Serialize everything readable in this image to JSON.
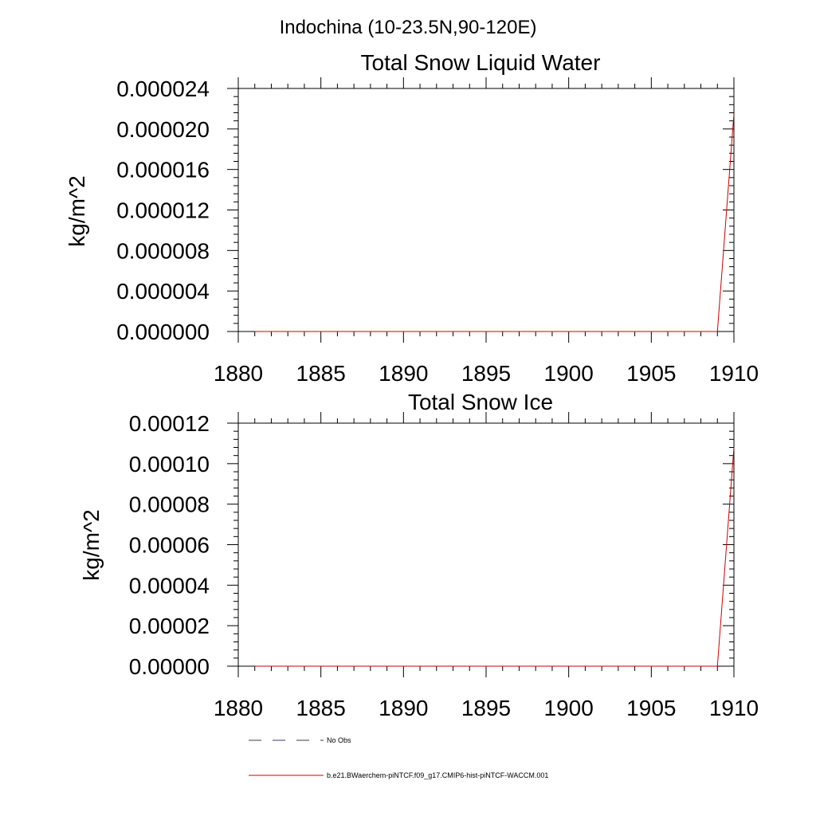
{
  "main_title": "Indochina (10-23.5N,90-120E)",
  "series_colors": {
    "model": "#cc0000",
    "obs": "#3a3a6a"
  },
  "legend": [
    {
      "label": "No Obs",
      "style": "dashed"
    },
    {
      "label": "b.e21.BWaerchem-piNTCF.f09_g17.CMIP6-hist-piNTCF-WACCM.001",
      "style": "solid"
    }
  ],
  "chart_data": [
    {
      "type": "line",
      "title": "Total Snow Liquid Water",
      "xlabel": "",
      "ylabel": "kg/m^2",
      "xlim": [
        1880,
        1910
      ],
      "ylim": [
        0,
        2.4e-05
      ],
      "xticks": [
        1880,
        1885,
        1890,
        1895,
        1900,
        1905,
        1910
      ],
      "yticks": [
        "0.000000",
        "0.000004",
        "0.000008",
        "0.000012",
        "0.000016",
        "0.000020",
        "0.000024"
      ],
      "grid": false,
      "series": [
        {
          "name": "b.e21.BWaerchem-piNTCF.f09_g17.CMIP6-hist-piNTCF-WACCM.001",
          "x": [
            1881,
            1909,
            1910
          ],
          "y": [
            0,
            0,
            2.15e-05
          ]
        }
      ]
    },
    {
      "type": "line",
      "title": "Total Snow Ice",
      "xlabel": "",
      "ylabel": "kg/m^2",
      "xlim": [
        1880,
        1910
      ],
      "ylim": [
        0,
        0.00012
      ],
      "xticks": [
        1880,
        1885,
        1890,
        1895,
        1900,
        1905,
        1910
      ],
      "yticks": [
        "0.00000",
        "0.00002",
        "0.00004",
        "0.00006",
        "0.00008",
        "0.00010",
        "0.00012"
      ],
      "grid": false,
      "series": [
        {
          "name": "b.e21.BWaerchem-piNTCF.f09_g17.CMIP6-hist-piNTCF-WACCM.001",
          "x": [
            1881,
            1909,
            1910
          ],
          "y": [
            0,
            0,
            0.000108
          ]
        }
      ]
    }
  ]
}
